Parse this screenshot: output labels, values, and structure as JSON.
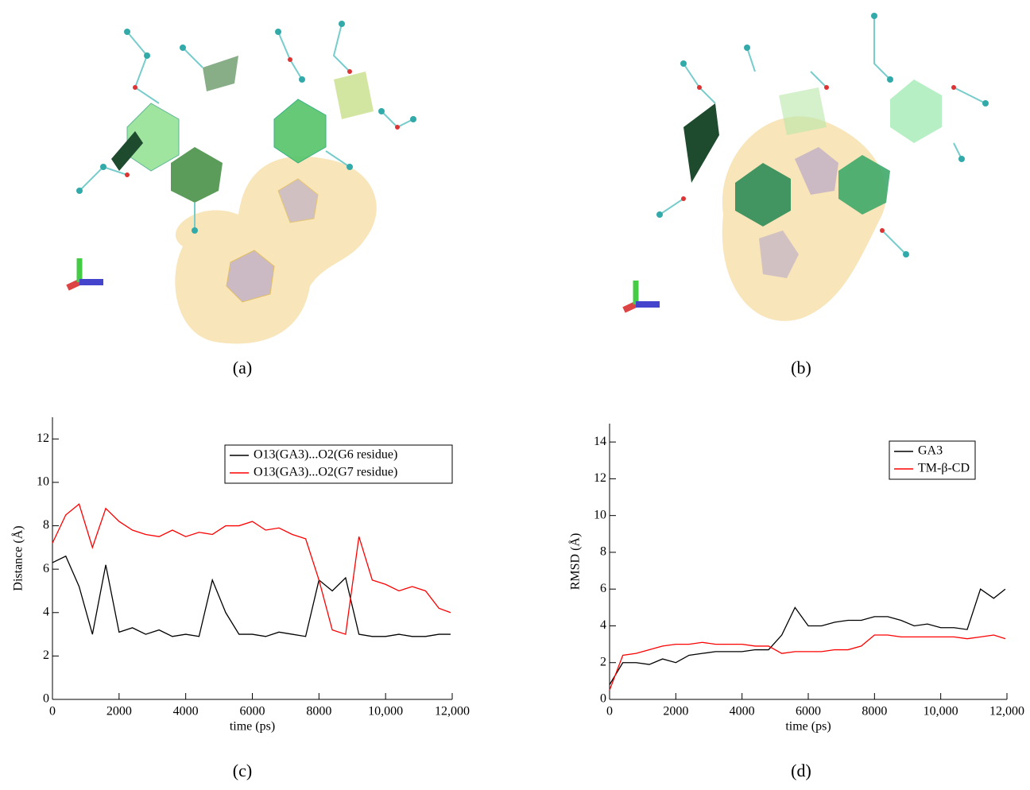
{
  "figure": {
    "captions": [
      "(a)",
      "(b)",
      "(c)",
      "(d)"
    ]
  },
  "chart_data": [
    {
      "type": "line",
      "xlabel": "time (ps)",
      "ylabel": "Distance (Å)",
      "x": [
        0,
        400,
        800,
        1200,
        1600,
        2000,
        2400,
        2800,
        3200,
        3600,
        4000,
        4400,
        4800,
        5200,
        5600,
        6000,
        6400,
        6800,
        7200,
        7600,
        8000,
        8400,
        8800,
        9200,
        9600,
        10000,
        10400,
        10800,
        11200,
        11600,
        11950
      ],
      "series": [
        {
          "name": "O13(GA3)...O2(G6 residue)",
          "color": "#000000",
          "values": [
            6.3,
            6.6,
            5.2,
            3.0,
            6.2,
            3.1,
            3.3,
            3.0,
            3.2,
            2.9,
            3.0,
            2.9,
            5.5,
            4.0,
            3.0,
            3.0,
            2.9,
            3.1,
            3.0,
            2.9,
            5.5,
            5.0,
            5.6,
            3.0,
            2.9,
            2.9,
            3.0,
            2.9,
            2.9,
            3.0,
            3.0
          ]
        },
        {
          "name": "O13(GA3)...O2(G7 residue)",
          "color": "#ff0000",
          "values": [
            7.2,
            8.5,
            9.0,
            7.0,
            8.8,
            8.2,
            7.8,
            7.6,
            7.5,
            7.8,
            7.5,
            7.7,
            7.6,
            8.0,
            8.0,
            8.2,
            7.8,
            7.9,
            7.6,
            7.4,
            5.5,
            3.2,
            3.0,
            7.5,
            5.5,
            5.3,
            5.0,
            5.2,
            5.0,
            4.2,
            4.0
          ]
        }
      ],
      "xlim": [
        0,
        12000
      ],
      "xticks": [
        0,
        2000,
        4000,
        6000,
        8000,
        {
          "value": 10000,
          "label": "10,000"
        },
        {
          "value": 12000,
          "label": "12,000"
        }
      ],
      "ylim": [
        0,
        13
      ],
      "yticks": [
        0,
        2,
        4,
        6,
        8,
        10,
        12
      ],
      "legend": "upper-right"
    },
    {
      "type": "line",
      "xlabel": "time (ps)",
      "ylabel": "RMSD (Å)",
      "x": [
        0,
        400,
        800,
        1200,
        1600,
        2000,
        2400,
        2800,
        3200,
        3600,
        4000,
        4400,
        4800,
        5200,
        5600,
        6000,
        6400,
        6800,
        7200,
        7600,
        8000,
        8400,
        8800,
        9200,
        9600,
        10000,
        10400,
        10800,
        11200,
        11600,
        11950
      ],
      "series": [
        {
          "name": "GA3",
          "color": "#000000",
          "values": [
            0.8,
            2.0,
            2.0,
            1.9,
            2.2,
            2.0,
            2.4,
            2.5,
            2.6,
            2.6,
            2.6,
            2.7,
            2.7,
            3.5,
            5.0,
            4.0,
            4.0,
            4.2,
            4.3,
            4.3,
            4.5,
            4.5,
            4.3,
            4.0,
            4.1,
            3.9,
            3.9,
            3.8,
            6.0,
            5.5,
            6.0
          ]
        },
        {
          "name": "TM-β-CD",
          "color": "#ff0000",
          "values": [
            0.5,
            2.4,
            2.5,
            2.7,
            2.9,
            3.0,
            3.0,
            3.1,
            3.0,
            3.0,
            3.0,
            2.9,
            2.9,
            2.5,
            2.6,
            2.6,
            2.6,
            2.7,
            2.7,
            2.9,
            3.5,
            3.5,
            3.4,
            3.4,
            3.4,
            3.4,
            3.4,
            3.3,
            3.4,
            3.5,
            3.3
          ]
        }
      ],
      "xlim": [
        0,
        12000
      ],
      "xticks": [
        0,
        2000,
        4000,
        6000,
        8000,
        {
          "value": 10000,
          "label": "10,000"
        },
        {
          "value": 12000,
          "label": "12,000"
        }
      ],
      "ylim": [
        0,
        15
      ],
      "yticks": [
        0,
        2,
        4,
        6,
        8,
        10,
        12,
        14
      ],
      "legend": "upper-right"
    }
  ]
}
